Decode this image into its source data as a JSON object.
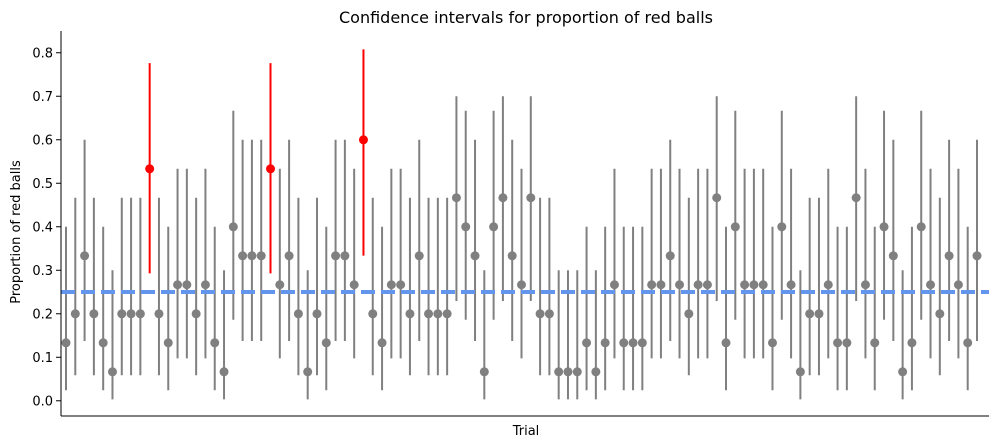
{
  "chart_data": {
    "type": "scatter",
    "title": "Confidence intervals for proportion of red balls",
    "xlabel": "Trial",
    "ylabel": "Proportion of red balls",
    "ylim": [
      -0.035,
      0.85
    ],
    "yticks": [
      "0.0",
      "0.1",
      "0.2",
      "0.3",
      "0.4",
      "0.5",
      "0.6",
      "0.7",
      "0.8"
    ],
    "xticks_shown": false,
    "grid": false,
    "reference_line": {
      "y": 0.25,
      "style": "dashed",
      "color": "#6495ed"
    },
    "colors": {
      "covers": "#808080",
      "misses": "#ff0000"
    },
    "note": "Each trial: point estimate (p) with 95% interval [lo, hi]. Intervals that miss the true value 0.25 are red.",
    "series": [
      {
        "p": [
          0.1333,
          0.2,
          0.3333,
          0.2,
          0.1333,
          0.0667,
          0.2,
          0.2,
          0.2,
          0.5333,
          0.2,
          0.1333,
          0.2667,
          0.2667,
          0.2,
          0.2667,
          0.1333,
          0.0667,
          0.4,
          0.3333,
          0.3333,
          0.3333,
          0.5333,
          0.2667,
          0.3333,
          0.2,
          0.0667,
          0.2,
          0.1333,
          0.3333,
          0.3333,
          0.2667,
          0.6,
          0.2,
          0.1333,
          0.2667,
          0.2667,
          0.2,
          0.3333,
          0.2,
          0.2,
          0.2,
          0.4667,
          0.4,
          0.3333,
          0.0667,
          0.4,
          0.4667,
          0.3333,
          0.2667,
          0.4667,
          0.2,
          0.2,
          0.0667,
          0.0667,
          0.0667,
          0.1333,
          0.0667,
          0.1333,
          0.2667,
          0.1333,
          0.1333,
          0.1333,
          0.2667,
          0.2667,
          0.3333,
          0.2667,
          0.2,
          0.2667,
          0.2667,
          0.4667,
          0.1333,
          0.4,
          0.2667,
          0.2667,
          0.2667,
          0.1333,
          0.4,
          0.2667,
          0.0667,
          0.2,
          0.2,
          0.2667,
          0.1333,
          0.1333,
          0.4667,
          0.2667,
          0.1333,
          0.4,
          0.3333,
          0.0667,
          0.1333,
          0.4,
          0.2667,
          0.2,
          0.3333,
          0.2667,
          0.1333,
          0.3333
        ],
        "lo": [
          0.0243,
          0.0587,
          0.1375,
          0.0587,
          0.0243,
          0.0033,
          0.0587,
          0.0587,
          0.0587,
          0.2928,
          0.0587,
          0.0243,
          0.0976,
          0.0976,
          0.0587,
          0.0976,
          0.0243,
          0.0033,
          0.1862,
          0.1375,
          0.1375,
          0.1375,
          0.2928,
          0.0976,
          0.1375,
          0.0587,
          0.0033,
          0.0587,
          0.0243,
          0.1375,
          0.1375,
          0.0976,
          0.3337,
          0.0587,
          0.0243,
          0.0976,
          0.0976,
          0.0587,
          0.1375,
          0.0587,
          0.0587,
          0.0587,
          0.2293,
          0.1862,
          0.1375,
          0.0033,
          0.1862,
          0.2293,
          0.1375,
          0.0976,
          0.2293,
          0.0587,
          0.0587,
          0.0033,
          0.0033,
          0.0033,
          0.0243,
          0.0033,
          0.0243,
          0.0976,
          0.0243,
          0.0243,
          0.0243,
          0.0976,
          0.0976,
          0.1375,
          0.0976,
          0.0587,
          0.0976,
          0.0976,
          0.2293,
          0.0243,
          0.1862,
          0.0976,
          0.0976,
          0.0976,
          0.0243,
          0.1862,
          0.0976,
          0.0033,
          0.0587,
          0.0587,
          0.0976,
          0.0243,
          0.0243,
          0.2293,
          0.0976,
          0.0243,
          0.1862,
          0.1375,
          0.0033,
          0.0243,
          0.1862,
          0.0976,
          0.0587,
          0.1375,
          0.0976,
          0.0243,
          0.1375
        ],
        "hi": [
          0.4,
          0.4667,
          0.6,
          0.4667,
          0.4,
          0.3,
          0.4667,
          0.4667,
          0.4667,
          0.7762,
          0.4667,
          0.4,
          0.5333,
          0.5333,
          0.4667,
          0.5333,
          0.4,
          0.3,
          0.6667,
          0.6,
          0.6,
          0.6,
          0.7762,
          0.5333,
          0.6,
          0.4667,
          0.3,
          0.4667,
          0.4,
          0.6,
          0.6,
          0.5333,
          0.8077,
          0.4667,
          0.4,
          0.5333,
          0.5333,
          0.4667,
          0.6,
          0.4667,
          0.4667,
          0.4667,
          0.7,
          0.6667,
          0.6,
          0.3,
          0.6667,
          0.7,
          0.6,
          0.5333,
          0.7,
          0.4667,
          0.4667,
          0.3,
          0.3,
          0.3,
          0.4,
          0.3,
          0.4,
          0.5333,
          0.4,
          0.4,
          0.4,
          0.5333,
          0.5333,
          0.6,
          0.5333,
          0.4667,
          0.5333,
          0.5333,
          0.7,
          0.4,
          0.6667,
          0.5333,
          0.5333,
          0.5333,
          0.4,
          0.6667,
          0.5333,
          0.3,
          0.4667,
          0.4667,
          0.5333,
          0.4,
          0.4,
          0.7,
          0.5333,
          0.4,
          0.6667,
          0.6,
          0.3,
          0.4,
          0.6667,
          0.5333,
          0.4667,
          0.6,
          0.5333,
          0.4,
          0.6
        ]
      }
    ]
  }
}
